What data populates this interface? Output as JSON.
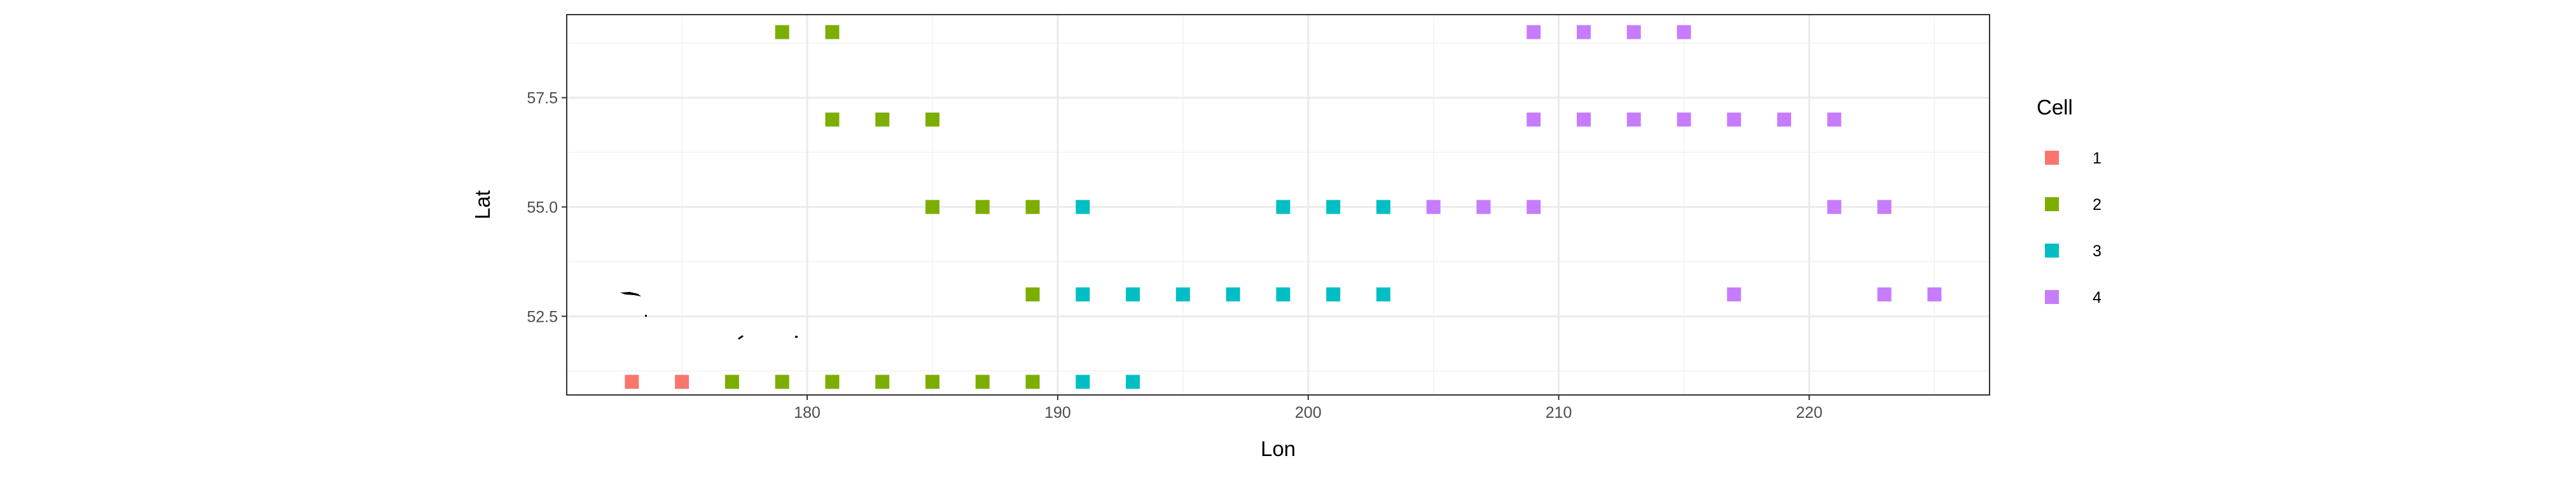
{
  "chart_data": {
    "type": "scatter",
    "xlabel": "Lon",
    "ylabel": "Lat",
    "xlim": [
      170.4,
      227.2
    ],
    "ylim": [
      50.7,
      59.4
    ],
    "x_ticks": [
      180,
      190,
      200,
      210,
      220
    ],
    "y_ticks": [
      52.5,
      55.0,
      57.5
    ],
    "y_tick_labels": [
      "52.5",
      "55.0",
      "57.5"
    ],
    "grid": true,
    "theme": "bw",
    "marker": "square",
    "legend": {
      "title": "Cell",
      "position": "right"
    },
    "series": [
      {
        "name": "1",
        "color": "#F8766D",
        "points": [
          [
            173,
            51
          ],
          [
            175,
            51
          ]
        ]
      },
      {
        "name": "2",
        "color": "#7CAE00",
        "points": [
          [
            177,
            51
          ],
          [
            179,
            51
          ],
          [
            181,
            51
          ],
          [
            183,
            51
          ],
          [
            185,
            51
          ],
          [
            187,
            51
          ],
          [
            189,
            51
          ],
          [
            189,
            53
          ],
          [
            185,
            55
          ],
          [
            187,
            55
          ],
          [
            189,
            55
          ],
          [
            181,
            57
          ],
          [
            183,
            57
          ],
          [
            185,
            57
          ],
          [
            179,
            59
          ],
          [
            181,
            59
          ]
        ]
      },
      {
        "name": "3",
        "color": "#00BFC4",
        "points": [
          [
            191,
            51
          ],
          [
            193,
            51
          ],
          [
            191,
            53
          ],
          [
            193,
            53
          ],
          [
            195,
            53
          ],
          [
            197,
            53
          ],
          [
            199,
            53
          ],
          [
            201,
            53
          ],
          [
            203,
            53
          ],
          [
            191,
            55
          ],
          [
            199,
            55
          ],
          [
            201,
            55
          ],
          [
            203,
            55
          ]
        ]
      },
      {
        "name": "4",
        "color": "#C77CFF",
        "points": [
          [
            205,
            55
          ],
          [
            207,
            55
          ],
          [
            209,
            55
          ],
          [
            221,
            55
          ],
          [
            223,
            55
          ],
          [
            217,
            53
          ],
          [
            223,
            53
          ],
          [
            225,
            53
          ],
          [
            209,
            57
          ],
          [
            211,
            57
          ],
          [
            213,
            57
          ],
          [
            215,
            57
          ],
          [
            217,
            57
          ],
          [
            219,
            57
          ],
          [
            221,
            57
          ],
          [
            209,
            59
          ],
          [
            211,
            59
          ],
          [
            213,
            59
          ],
          [
            215,
            59
          ]
        ]
      }
    ]
  }
}
